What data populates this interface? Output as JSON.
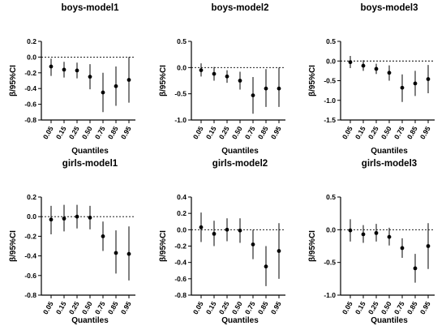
{
  "chart_data": [
    {
      "type": "scatter",
      "title": "boys-model1",
      "xlabel": "Quantiles",
      "ylabel": "β/95%CI",
      "categories": [
        "0.05",
        "0.15",
        "0.25",
        "0.50",
        "0.75",
        "0.85",
        "0.95"
      ],
      "series": [
        {
          "values": [
            -0.12,
            -0.16,
            -0.17,
            -0.25,
            -0.45,
            -0.37,
            -0.29
          ],
          "ci_low": [
            -0.24,
            -0.26,
            -0.27,
            -0.41,
            -0.7,
            -0.62,
            -0.58
          ],
          "ci_high": [
            -0.02,
            -0.06,
            -0.07,
            -0.09,
            -0.2,
            -0.12,
            0.0
          ]
        }
      ],
      "ylim": [
        -0.8,
        0.2
      ],
      "yticks": [
        "0.2",
        "0.0",
        "-0.2",
        "-0.4",
        "-0.6",
        "-0.8"
      ],
      "reference_line": 0
    },
    {
      "type": "scatter",
      "title": "boys-model2",
      "xlabel": "Quantiles",
      "ylabel": "β/95%CI",
      "categories": [
        "0.05",
        "0.15",
        "0.25",
        "0.50",
        "0.75",
        "0.85",
        "0.95"
      ],
      "series": [
        {
          "values": [
            -0.05,
            -0.12,
            -0.17,
            -0.25,
            -0.53,
            -0.4,
            -0.4
          ],
          "ci_low": [
            -0.17,
            -0.25,
            -0.29,
            -0.42,
            -0.88,
            -0.75,
            -0.75
          ],
          "ci_high": [
            0.08,
            0.01,
            -0.05,
            -0.08,
            -0.18,
            -0.03,
            0.0
          ]
        }
      ],
      "ylim": [
        -1.0,
        0.5
      ],
      "yticks": [
        "0.5",
        "0.0",
        "-0.5",
        "-1.0"
      ],
      "reference_line": 0
    },
    {
      "type": "scatter",
      "title": "boys-model3",
      "xlabel": "Quantiles",
      "ylabel": "β/95%CI",
      "categories": [
        "0.05",
        "0.15",
        "0.25",
        "0.50",
        "0.75",
        "0.85",
        "0.95"
      ],
      "series": [
        {
          "values": [
            -0.03,
            -0.12,
            -0.2,
            -0.3,
            -0.68,
            -0.57,
            -0.46
          ],
          "ci_low": [
            -0.18,
            -0.25,
            -0.33,
            -0.5,
            -1.04,
            -0.89,
            -0.82
          ],
          "ci_high": [
            0.13,
            0.02,
            -0.07,
            -0.11,
            -0.34,
            -0.25,
            -0.1
          ]
        }
      ],
      "ylim": [
        -1.5,
        0.5
      ],
      "yticks": [
        "0.5",
        "0.0",
        "-0.5",
        "-1.0",
        "-1.5"
      ],
      "reference_line": 0
    },
    {
      "type": "scatter",
      "title": "girls-model1",
      "xlabel": "Quantiles",
      "ylabel": "β/95%CI",
      "categories": [
        "0.05",
        "0.15",
        "0.25",
        "0.50",
        "0.75",
        "0.85",
        "0.95"
      ],
      "series": [
        {
          "values": [
            -0.03,
            -0.02,
            0.0,
            -0.01,
            -0.2,
            -0.37,
            -0.38
          ],
          "ci_low": [
            -0.18,
            -0.15,
            -0.12,
            -0.13,
            -0.35,
            -0.58,
            -0.65
          ],
          "ci_high": [
            0.11,
            0.12,
            0.12,
            0.11,
            -0.05,
            -0.14,
            -0.1
          ]
        }
      ],
      "ylim": [
        -0.8,
        0.2
      ],
      "yticks": [
        "0.2",
        "0.0",
        "-0.2",
        "-0.4",
        "-0.6",
        "-0.8"
      ],
      "reference_line": 0
    },
    {
      "type": "scatter",
      "title": "girls-model2",
      "xlabel": "Quantiles",
      "ylabel": "β/95%CI",
      "categories": [
        "0.05",
        "0.15",
        "0.25",
        "0.50",
        "0.75",
        "0.85",
        "0.95"
      ],
      "series": [
        {
          "values": [
            0.03,
            -0.05,
            0.0,
            -0.01,
            -0.18,
            -0.45,
            -0.26
          ],
          "ci_low": [
            -0.15,
            -0.2,
            -0.14,
            -0.16,
            -0.36,
            -0.69,
            -0.6
          ],
          "ci_high": [
            0.21,
            0.11,
            0.14,
            0.14,
            0.0,
            -0.2,
            0.08
          ]
        }
      ],
      "ylim": [
        -0.8,
        0.4
      ],
      "yticks": [
        "0.4",
        "0.2",
        "0.0",
        "-0.2",
        "-0.4",
        "-0.6",
        "-0.8"
      ],
      "reference_line": 0
    },
    {
      "type": "scatter",
      "title": "girls-model3",
      "xlabel": "Quantiles",
      "ylabel": "β/95%CI",
      "categories": [
        "0.05",
        "0.15",
        "0.25",
        "0.50",
        "0.75",
        "0.85",
        "0.95"
      ],
      "series": [
        {
          "values": [
            -0.01,
            -0.07,
            -0.05,
            -0.11,
            -0.28,
            -0.59,
            -0.25
          ],
          "ci_low": [
            -0.18,
            -0.2,
            -0.18,
            -0.24,
            -0.43,
            -0.81,
            -0.6
          ],
          "ci_high": [
            0.16,
            0.07,
            0.09,
            0.03,
            -0.13,
            -0.37,
            0.1
          ]
        }
      ],
      "ylim": [
        -1.0,
        0.5
      ],
      "yticks": [
        "0.5",
        "0.0",
        "-0.5",
        "-1.0"
      ],
      "reference_line": 0
    }
  ]
}
